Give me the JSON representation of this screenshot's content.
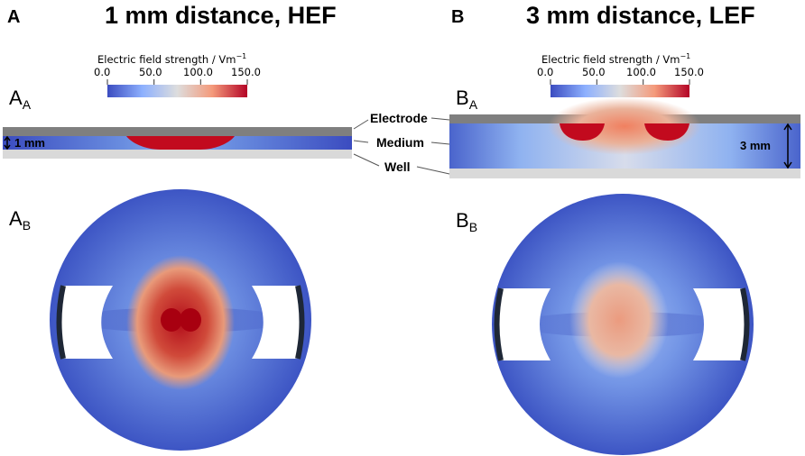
{
  "panels": [
    {
      "letter": "A",
      "title": "1 mm distance, HEF",
      "sub_a_main": "A",
      "sub_a_sub": "A",
      "sub_b_main": "A",
      "sub_b_sub": "B",
      "dimension_label": "1 mm"
    },
    {
      "letter": "B",
      "title": "3 mm distance, LEF",
      "sub_a_main": "B",
      "sub_a_sub": "A",
      "sub_b_main": "B",
      "sub_b_sub": "B",
      "dimension_label": "3 mm"
    }
  ],
  "colorbar": {
    "title": "Electric field strength / Vm",
    "title_superscript": "−1",
    "ticks": [
      "0.0",
      "50.0",
      "100.0",
      "150.0"
    ],
    "colors": [
      "#3b4cc0",
      "#8db0fe",
      "#dddddd",
      "#f49a7b",
      "#b40426"
    ]
  },
  "callouts": {
    "electrode": "Electrode",
    "medium": "Medium",
    "well": "Well"
  }
}
